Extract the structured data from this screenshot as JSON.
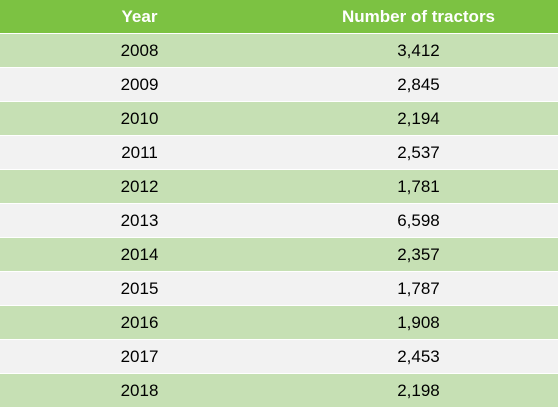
{
  "table": {
    "header": [
      "Year",
      "Number of tractors"
    ],
    "rows": [
      [
        "2008",
        "3,412"
      ],
      [
        "2009",
        "2,845"
      ],
      [
        "2010",
        "2,194"
      ],
      [
        "2011",
        "2,537"
      ],
      [
        "2012",
        "1,781"
      ],
      [
        "2013",
        "6,598"
      ],
      [
        "2014",
        "2,357"
      ],
      [
        "2015",
        "1,787"
      ],
      [
        "2016",
        "1,908"
      ],
      [
        "2017",
        "2,453"
      ],
      [
        "2018",
        "2,198"
      ]
    ]
  }
}
